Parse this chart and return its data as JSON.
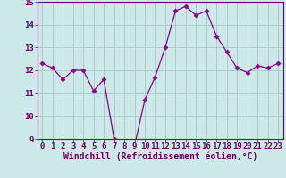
{
  "x": [
    0,
    1,
    2,
    3,
    4,
    5,
    6,
    7,
    8,
    9,
    10,
    11,
    12,
    13,
    14,
    15,
    16,
    17,
    18,
    19,
    20,
    21,
    22,
    23
  ],
  "y": [
    12.3,
    12.1,
    11.6,
    12.0,
    12.0,
    11.1,
    11.6,
    9.0,
    8.8,
    8.7,
    10.7,
    11.7,
    13.0,
    14.6,
    14.8,
    14.4,
    14.6,
    13.5,
    12.8,
    12.1,
    11.9,
    12.2,
    12.1,
    12.3
  ],
  "line_color": "#880088",
  "marker": "D",
  "marker_size": 2.5,
  "bg_color": "#cce8e8",
  "plot_bg_color": "#cce8e8",
  "grid_color": "#aacccc",
  "xlabel": "Windchill (Refroidissement éolien,°C)",
  "ylim": [
    9,
    15
  ],
  "xlim": [
    -0.5,
    23.5
  ],
  "yticks": [
    9,
    10,
    11,
    12,
    13,
    14,
    15
  ],
  "xticks": [
    0,
    1,
    2,
    3,
    4,
    5,
    6,
    7,
    8,
    9,
    10,
    11,
    12,
    13,
    14,
    15,
    16,
    17,
    18,
    19,
    20,
    21,
    22,
    23
  ],
  "xlabel_fontsize": 7,
  "tick_fontsize": 6.5,
  "label_color": "#660066"
}
